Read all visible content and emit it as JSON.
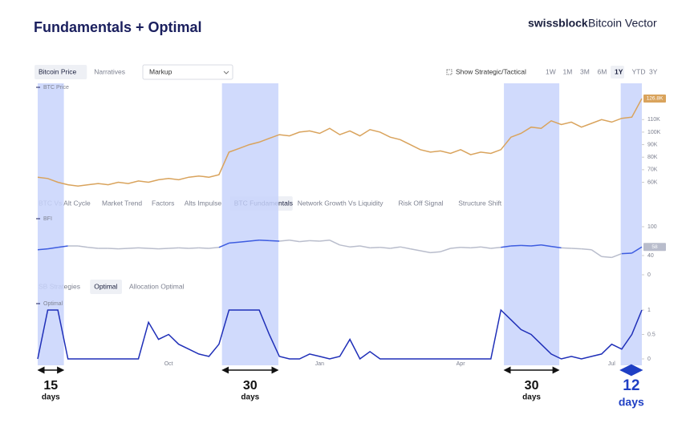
{
  "header": {
    "title": "Fundamentals + Optimal",
    "brand": "swissblock",
    "product": "Bitcoin Vector"
  },
  "toolbar": {
    "tabs": [
      "Bitcoin Price",
      "Narratives"
    ],
    "selected": 0,
    "dropdown": "Markup",
    "toggle": "Show Strategic/Tactical",
    "ranges": [
      "1W",
      "1M",
      "3M",
      "6M",
      "1Y",
      "YTD",
      "3Y"
    ],
    "range_selected": 4
  },
  "indicator_tabs": {
    "tabs": [
      "BTC Vs Alt Cycle",
      "Market Trend",
      "Factors",
      "Alts Impulse",
      "BTC Fundamentals",
      "Network Growth Vs Liquidity",
      "Risk Off Signal",
      "Structure Shift"
    ],
    "selected": 4
  },
  "strategy_tabs": {
    "tabs": [
      "SB Strategies",
      "Optimal",
      "Allocation Optimal"
    ],
    "selected": 1
  },
  "highlight_color": "#c8d3fb",
  "annotations": [
    {
      "from": 0,
      "to": 2.6,
      "number": "15",
      "unit": "days",
      "color": "#111111",
      "emphasis": false
    },
    {
      "from": 18.3,
      "to": 23.9,
      "number": "30",
      "unit": "days",
      "color": "#111111",
      "emphasis": false
    },
    {
      "from": 46.3,
      "to": 51.8,
      "number": "30",
      "unit": "days",
      "color": "#111111",
      "emphasis": false
    },
    {
      "from": 57.9,
      "to": 60,
      "number": "12",
      "unit": "days",
      "color": "#1f3fc4",
      "emphasis": true
    }
  ],
  "chart_data": [
    {
      "type": "line",
      "series": [
        {
          "name": "BTC Price",
          "color": "#d9a35c",
          "values": [
            64,
            63,
            60,
            58,
            57,
            58,
            59,
            58,
            60,
            59,
            61,
            60,
            62,
            63,
            62,
            64,
            65,
            64,
            66,
            84,
            87,
            90,
            92,
            95,
            98,
            97,
            100,
            101,
            99,
            103,
            98,
            101,
            97,
            102,
            100,
            96,
            94,
            90,
            86,
            84,
            85,
            83,
            86,
            82,
            84,
            83,
            86,
            96,
            99,
            104,
            103,
            109,
            106,
            108,
            104,
            107,
            110,
            108,
            111,
            112,
            126.8
          ]
        }
      ],
      "current_label": "126.8K",
      "ylim": [
        52,
        130
      ],
      "yticks": [
        {
          "value": 60,
          "label": "60K"
        },
        {
          "value": 70,
          "label": "70K"
        },
        {
          "value": 80,
          "label": "80K"
        },
        {
          "value": 90,
          "label": "90K"
        },
        {
          "value": 100,
          "label": "100K"
        },
        {
          "value": 110,
          "label": "110K"
        }
      ]
    },
    {
      "type": "line",
      "highlight_line_color": "#3d5ce0",
      "series": [
        {
          "name": "BFI",
          "color": "#b9bdcc",
          "values": [
            52,
            54,
            57,
            60,
            60,
            57,
            55,
            55,
            54,
            55,
            56,
            55,
            54,
            55,
            56,
            55,
            56,
            55,
            57,
            66,
            68,
            70,
            72,
            71,
            70,
            72,
            69,
            71,
            70,
            72,
            62,
            58,
            60,
            56,
            57,
            55,
            58,
            54,
            50,
            46,
            48,
            55,
            57,
            56,
            58,
            55,
            57,
            60,
            61,
            60,
            62,
            59,
            56,
            55,
            54,
            52,
            38,
            36,
            44,
            45,
            58
          ]
        }
      ],
      "current_label": "58",
      "ylim": [
        0,
        100
      ],
      "yticks": [
        0,
        40,
        100
      ]
    },
    {
      "type": "line",
      "series": [
        {
          "name": "Optimal",
          "color": "#1f2fb8",
          "values": [
            0,
            1,
            1,
            0,
            0,
            0,
            0,
            0,
            0,
            0,
            0,
            0.75,
            0.4,
            0.5,
            0.3,
            0.2,
            0.1,
            0.05,
            0.3,
            1,
            1,
            1,
            1,
            0.5,
            0.05,
            0,
            0,
            0.1,
            0.05,
            0,
            0.05,
            0.4,
            0,
            0.15,
            0,
            0,
            0,
            0,
            0,
            0,
            0,
            0,
            0,
            0,
            0,
            0,
            1,
            0.8,
            0.6,
            0.5,
            0.3,
            0.1,
            0,
            0.05,
            0,
            0.05,
            0.1,
            0.3,
            0.2,
            0.5,
            1
          ]
        }
      ],
      "categories": [
        null,
        null,
        null,
        null,
        null,
        null,
        null,
        null,
        null,
        null,
        null,
        null,
        null,
        "Oct",
        null,
        null,
        null,
        null,
        null,
        null,
        null,
        null,
        null,
        null,
        null,
        null,
        null,
        null,
        "Jan",
        null,
        null,
        null,
        null,
        null,
        null,
        null,
        null,
        null,
        null,
        null,
        null,
        null,
        "Apr",
        null,
        null,
        null,
        null,
        null,
        null,
        null,
        null,
        null,
        null,
        null,
        null,
        null,
        null,
        "Jul",
        null,
        null,
        null
      ],
      "ylim": [
        0,
        1
      ],
      "yticks": [
        0,
        0.5,
        1
      ]
    }
  ]
}
